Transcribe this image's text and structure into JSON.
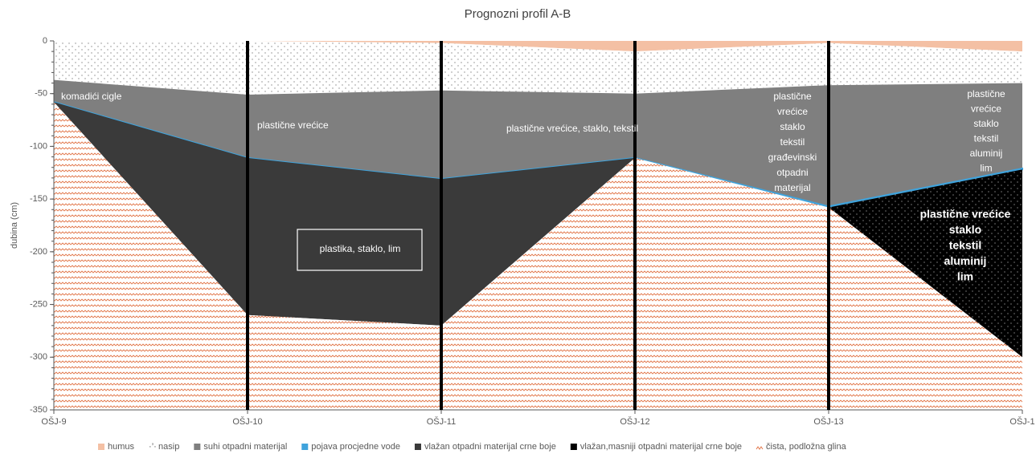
{
  "chart_data": {
    "type": "stacked_area",
    "title": "Prognozni profil A-B",
    "y_label": "dubina (cm)",
    "categories": [
      "OŠJ-9",
      "OŠJ-10",
      "OŠJ-11",
      "OŠJ-12",
      "OŠJ-13",
      "OŠJ-1"
    ],
    "ylim": [
      -350,
      0
    ],
    "yticks": [
      0,
      -50,
      -100,
      -150,
      -200,
      -250,
      -300,
      -350
    ],
    "series": [
      {
        "name": "humus",
        "color": "#f4c0a4",
        "values": [
          0,
          0,
          -2,
          -10,
          -2,
          -10
        ]
      },
      {
        "name": "nasip",
        "color": "#8a8a8a",
        "values": [
          -37,
          -51,
          -45,
          -40,
          -40,
          -30
        ]
      },
      {
        "name": "suhi otpadni materijal",
        "color": "#7f7f7f",
        "values": [
          -21,
          -60,
          -84,
          -61,
          -115,
          -81
        ]
      },
      {
        "name": "pojava procjedne vode",
        "color": "#3fa3dc",
        "values": [
          0,
          0,
          0,
          0,
          -1,
          -1
        ]
      },
      {
        "name": "vlažan otpadni materijal crne boje",
        "color": "#3a3a3a",
        "values": [
          0,
          -149,
          -139,
          0,
          0,
          0
        ]
      },
      {
        "name": "vlažan,masniji otpadni materijal crne boje",
        "color": "#000000",
        "values": [
          0,
          0,
          0,
          0,
          0,
          -178
        ]
      },
      {
        "name": "čista, podložna glina",
        "color": "#e2774a",
        "values": [
          -292,
          -90,
          -80,
          -239,
          -192,
          -50
        ]
      }
    ],
    "annotations": [
      [
        "komadići cigle"
      ],
      [
        "plastične vrećice"
      ],
      [
        "plastične vrećice, staklo, tekstil"
      ],
      [
        "plastika, staklo, lim"
      ],
      [
        "plastične",
        "vrećice",
        "staklo",
        "tekstil",
        "građevinski",
        "otpadni",
        "materijal"
      ],
      [
        "plastične",
        "vrećice",
        "staklo",
        "tekstil",
        "aluminij",
        "lim"
      ],
      [
        "plastične vrećice",
        "staklo",
        "tekstil",
        "aluminij",
        "lim"
      ]
    ]
  }
}
